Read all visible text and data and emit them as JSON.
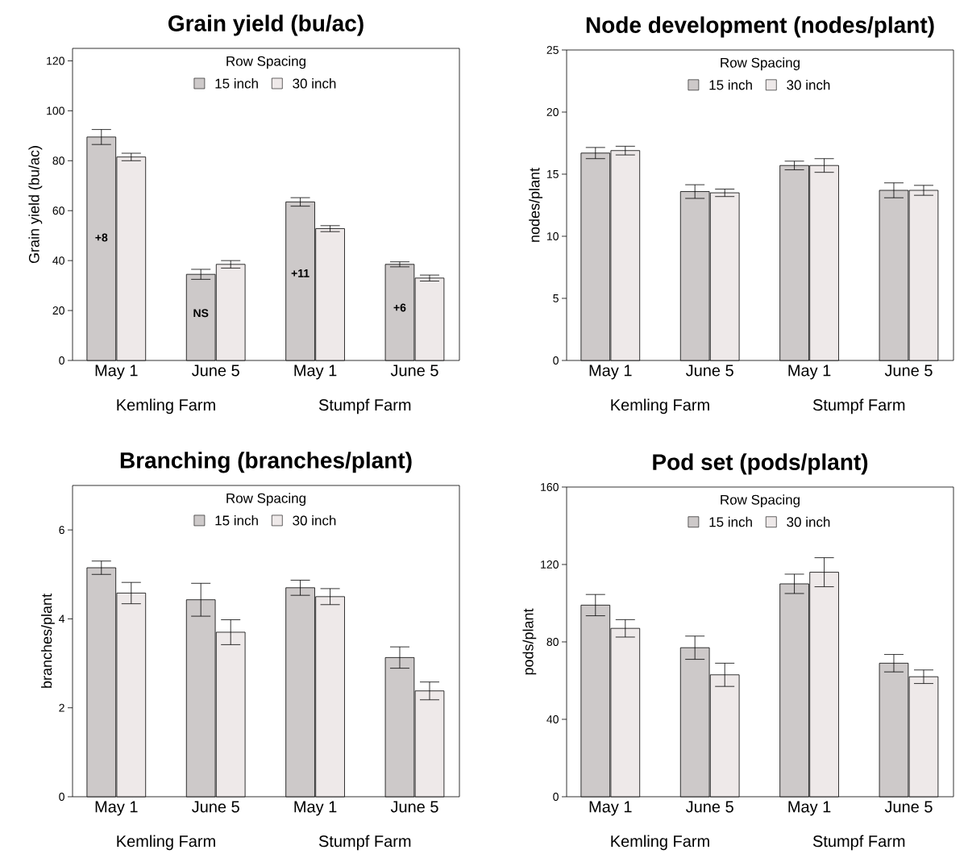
{
  "chart_data": [
    {
      "type": "bar",
      "title": "Grain yield (bu/ac)",
      "ylabel": "Grain yield (bu/ac)",
      "categories": [
        "May 1",
        "June 5",
        "May 1",
        "June 5"
      ],
      "series": [
        {
          "name": "15 inch",
          "color": "#cdc9c9",
          "values": [
            89.5,
            34.5,
            63.5,
            38.5
          ],
          "errors": [
            3,
            2,
            1.7,
            1
          ]
        },
        {
          "name": "30 inch",
          "color": "#eee9e9",
          "values": [
            81.5,
            38.5,
            52.8,
            33
          ],
          "errors": [
            1.5,
            1.5,
            1.2,
            1.2
          ]
        }
      ],
      "ylim": [
        0,
        125
      ],
      "yticks": [
        0,
        20,
        40,
        60,
        80,
        100,
        120
      ],
      "legend_title": "Row Spacing",
      "legend": "top",
      "annotations": [
        "Kemling Farm",
        "Stumpf Farm",
        "**+8**",
        "**NS**",
        "**+11**",
        "**+6**"
      ]
    },
    {
      "type": "bar",
      "title": "Node development (nodes/plant)",
      "ylabel": "nodes/plant",
      "categories": [
        "May 1",
        "June 5",
        "May 1",
        "June 5"
      ],
      "series": [
        {
          "name": "15 inch",
          "color": "#cdc9c9",
          "values": [
            16.7,
            13.6,
            15.7,
            13.7
          ],
          "errors": [
            0.45,
            0.55,
            0.35,
            0.6
          ]
        },
        {
          "name": "30 inch",
          "color": "#eee9e9",
          "values": [
            16.9,
            13.5,
            15.7,
            13.7
          ],
          "errors": [
            0.35,
            0.3,
            0.55,
            0.4
          ]
        }
      ],
      "ylim": [
        0,
        25
      ],
      "yticks": [
        0,
        5,
        10,
        15,
        20,
        25
      ],
      "legend_title": "Row Spacing",
      "legend": "top",
      "annotations": [
        "Kemling Farm",
        "Stumpf Farm"
      ]
    },
    {
      "type": "bar",
      "title": "Branching (branches/plant)",
      "ylabel": "branches/plant",
      "categories": [
        "May 1",
        "June 5",
        "May 1",
        "June 5"
      ],
      "series": [
        {
          "name": "15 inch",
          "color": "#cdc9c9",
          "values": [
            5.15,
            4.43,
            4.7,
            3.13
          ],
          "errors": [
            0.15,
            0.37,
            0.17,
            0.24
          ]
        },
        {
          "name": "30 inch",
          "color": "#eee9e9",
          "values": [
            4.58,
            3.7,
            4.5,
            2.38
          ],
          "errors": [
            0.24,
            0.28,
            0.18,
            0.2
          ]
        }
      ],
      "ylim": [
        0,
        7
      ],
      "yticks": [
        0,
        2,
        4,
        6
      ],
      "legend_title": "Row Spacing",
      "legend": "top",
      "annotations": [
        "Kemling Farm",
        "Stumpf Farm"
      ]
    },
    {
      "type": "bar",
      "title": "Pod set (pods/plant)",
      "ylabel": "pods/plant",
      "categories": [
        "May 1",
        "June 5",
        "May 1",
        "June 5"
      ],
      "series": [
        {
          "name": "15 inch",
          "color": "#cdc9c9",
          "values": [
            99,
            77,
            110,
            69
          ],
          "errors": [
            5.5,
            6,
            5,
            4.5
          ]
        },
        {
          "name": "30 inch",
          "color": "#eee9e9",
          "values": [
            87,
            63,
            116,
            62
          ],
          "errors": [
            4.5,
            6,
            7.5,
            3.5
          ]
        }
      ],
      "ylim": [
        0,
        160
      ],
      "yticks": [
        0,
        40,
        80,
        120,
        160
      ],
      "legend_title": "Row Spacing",
      "legend": "top",
      "annotations": [
        "Kemling Farm",
        "Stumpf Farm"
      ]
    }
  ]
}
